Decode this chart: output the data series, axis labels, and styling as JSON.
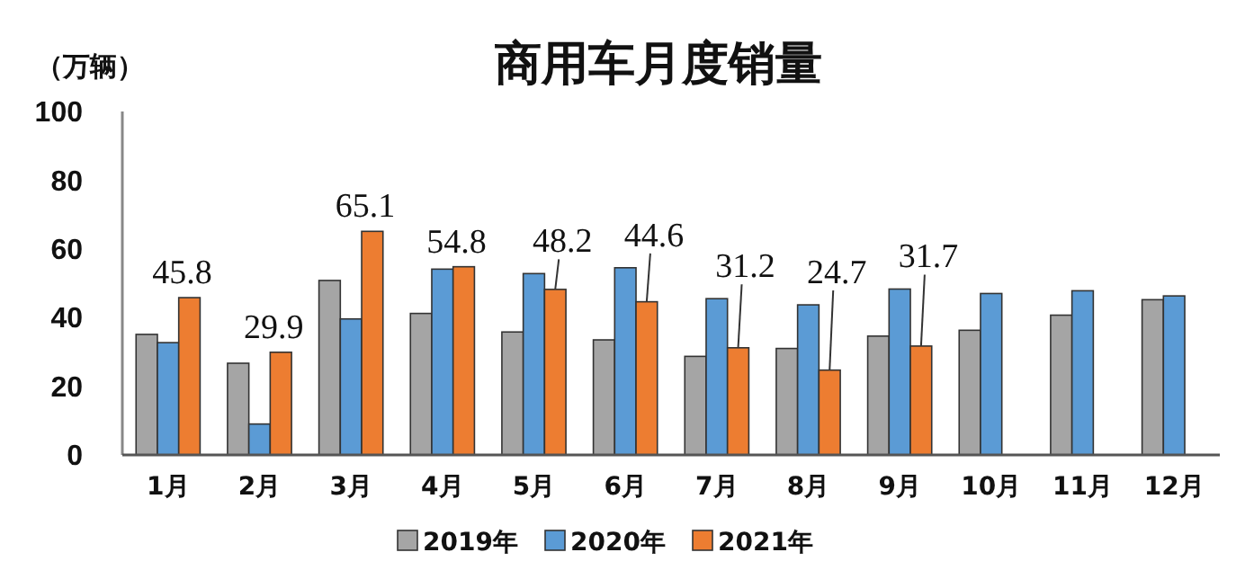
{
  "chart_data": {
    "type": "bar",
    "title": "商用车月度销量",
    "ylabel": "（万辆）",
    "categories": [
      "1月",
      "2月",
      "3月",
      "4月",
      "5月",
      "6月",
      "7月",
      "8月",
      "9月",
      "10月",
      "11月",
      "12月"
    ],
    "series": [
      {
        "name": "2019年",
        "color": "#a5a5a5",
        "values": [
          35.1,
          26.7,
          50.8,
          41.2,
          35.8,
          33.5,
          28.7,
          31.0,
          34.6,
          36.3,
          40.7,
          45.2
        ]
      },
      {
        "name": "2020年",
        "color": "#5b9bd5",
        "values": [
          32.7,
          9.0,
          39.6,
          54.1,
          52.8,
          54.5,
          45.5,
          43.7,
          48.3,
          47.0,
          47.8,
          46.3
        ]
      },
      {
        "name": "2021年",
        "color": "#ed7d31",
        "values": [
          45.8,
          29.9,
          65.1,
          54.8,
          48.2,
          44.6,
          31.2,
          24.7,
          31.7,
          null,
          null,
          null
        ],
        "value_labels": [
          "45.8",
          "29.9",
          "65.1",
          "54.8",
          "48.2",
          "44.6",
          "31.2",
          "24.7",
          "31.7",
          null,
          null,
          null
        ]
      }
    ],
    "ylim": [
      0,
      100
    ],
    "yticks": [
      0,
      20,
      40,
      60,
      80,
      100
    ],
    "grid": false,
    "legend": "bottom"
  }
}
